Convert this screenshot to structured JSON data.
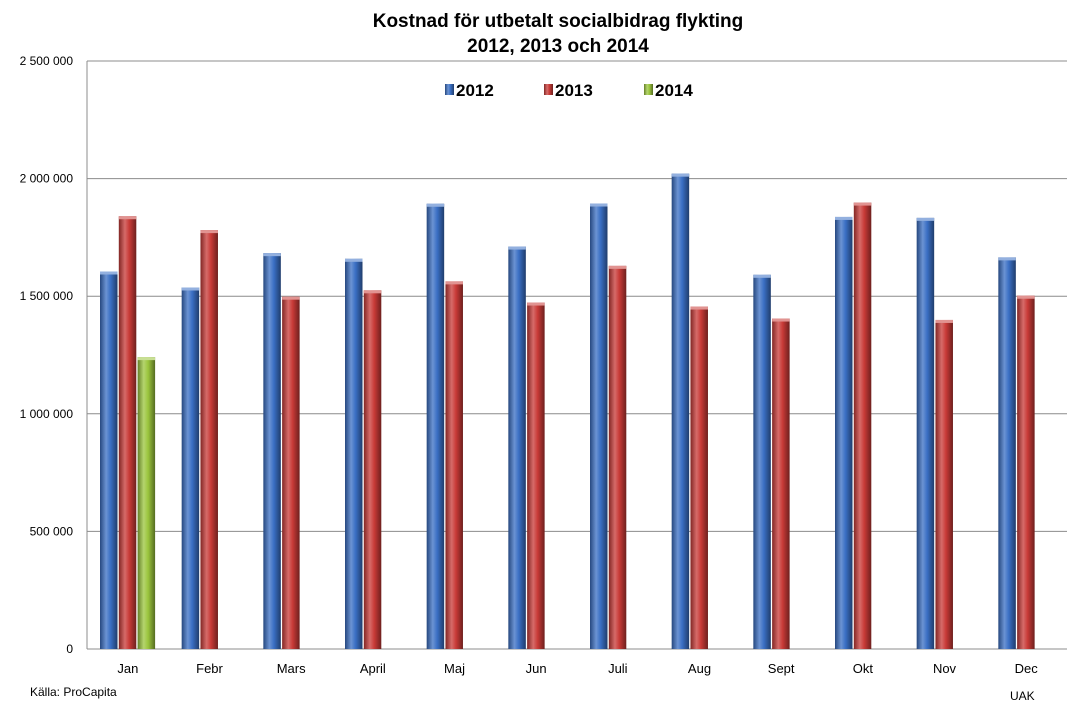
{
  "chart_data": {
    "type": "bar",
    "title": "Kostnad för utbetalt socialbidrag flykting",
    "subtitle": "2012, 2013 och 2014",
    "categories": [
      "Jan",
      "Febr",
      "Mars",
      "April",
      "Maj",
      "Jun",
      "Juli",
      "Aug",
      "Sept",
      "Okt",
      "Nov",
      "Dec"
    ],
    "series": [
      {
        "name": "2012",
        "color": "#3a6fc4",
        "values": [
          1605000,
          1537000,
          1683000,
          1659000,
          1893000,
          1711000,
          1894000,
          2021000,
          1591000,
          1837000,
          1833000,
          1665000
        ]
      },
      {
        "name": "2013",
        "color": "#c83a37",
        "values": [
          1840000,
          1781000,
          1498000,
          1525000,
          1563000,
          1473000,
          1629000,
          1456000,
          1405000,
          1898000,
          1399000,
          1502000
        ]
      },
      {
        "name": "2014",
        "color": "#9bc53d",
        "values": [
          1241000,
          null,
          null,
          null,
          null,
          null,
          null,
          null,
          null,
          null,
          null,
          null
        ]
      }
    ],
    "ylim": [
      0,
      2500000
    ],
    "yticks": [
      0,
      500000,
      1000000,
      1500000,
      2000000,
      2500000
    ],
    "ytick_labels": [
      "0",
      "500 000",
      "1 000 000",
      "1 500 000",
      "2 000 000",
      "2 500 000"
    ],
    "grid": true,
    "legend_position": "top-center"
  },
  "footer": {
    "source": "Källa: ProCapita",
    "author": "UAK"
  }
}
